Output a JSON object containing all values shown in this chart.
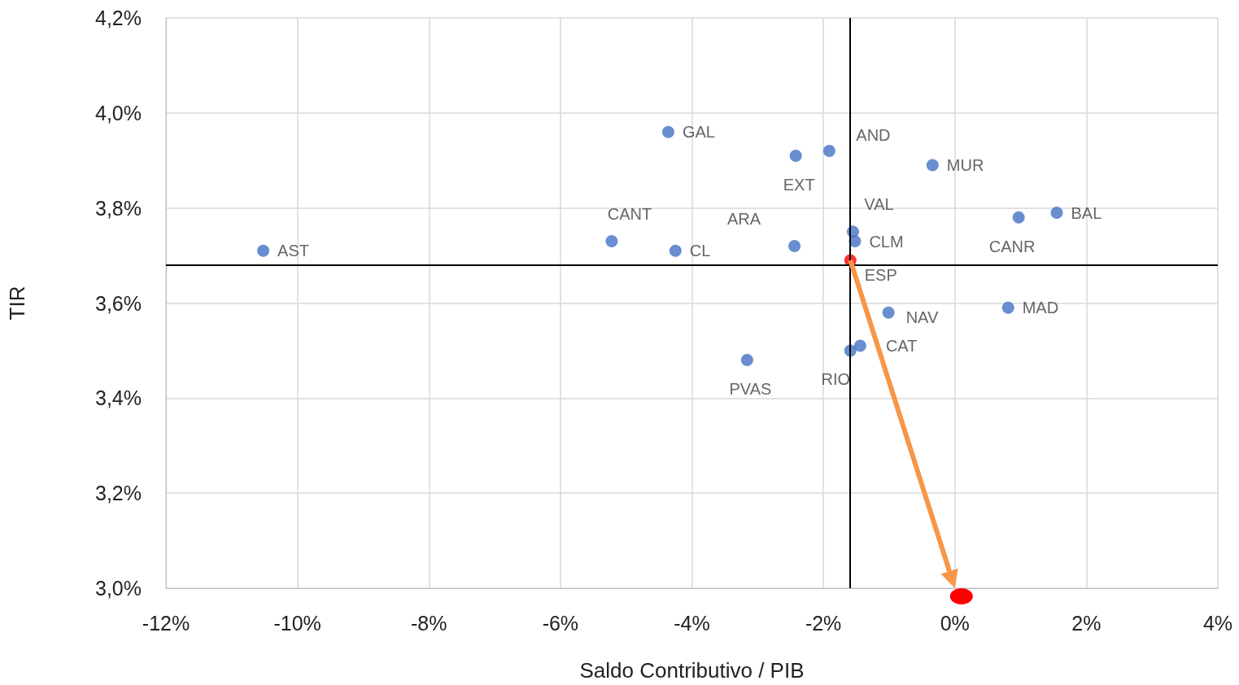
{
  "chart_data": {
    "type": "scatter",
    "xlabel": "Saldo Contributivo / PIB",
    "ylabel": "TIR",
    "x": [
      -4.36,
      -2.42,
      -1.91,
      -0.34,
      -5.22,
      -4.25,
      -2.44,
      -1.55,
      -1.52,
      -1.59,
      0.97,
      1.55,
      -10.52,
      -1.01,
      0.81,
      -1.44,
      -1.59,
      -3.16
    ],
    "values": [
      3.96,
      3.91,
      3.92,
      3.89,
      3.73,
      3.71,
      3.72,
      3.75,
      3.73,
      3.69,
      3.78,
      3.79,
      3.71,
      3.58,
      3.59,
      3.51,
      3.5,
      3.48
    ],
    "value_labels": [
      "GAL",
      "EXT",
      "AND",
      "MUR",
      "CANT",
      "CL",
      "ARA",
      "VAL",
      "CLM",
      "ESP",
      "CANR",
      "BAL",
      "AST",
      "NAV",
      "MAD",
      "CAT",
      "RIO",
      "PVAS"
    ],
    "colors": [
      "#4472c4",
      "#4472c4",
      "#4472c4",
      "#4472c4",
      "#4472c4",
      "#4472c4",
      "#4472c4",
      "#4472c4",
      "#4472c4",
      "#ff0000",
      "#4472c4",
      "#4472c4",
      "#4472c4",
      "#4472c4",
      "#4472c4",
      "#4472c4",
      "#4472c4",
      "#4472c4"
    ],
    "marker": "circle",
    "xlim": [
      -12,
      4
    ],
    "xticks": [
      {
        "value": -12,
        "label": "-12%"
      },
      {
        "value": -10,
        "label": "-10%"
      },
      {
        "value": -8,
        "label": "-8%"
      },
      {
        "value": -6,
        "label": "-6%"
      },
      {
        "value": -4,
        "label": "-4%"
      },
      {
        "value": -2,
        "label": "-2%"
      },
      {
        "value": 0,
        "label": "0%"
      },
      {
        "value": 2,
        "label": "2%"
      },
      {
        "value": 4,
        "label": "4%"
      }
    ],
    "ylim": [
      3.0,
      4.2
    ],
    "yticks": [
      {
        "value": 3.0,
        "label": "3,0%"
      },
      {
        "value": 3.2,
        "label": "3,2%"
      },
      {
        "value": 3.4,
        "label": "3,4%"
      },
      {
        "value": 3.6,
        "label": "3,6%"
      },
      {
        "value": 3.8,
        "label": "3,8%"
      },
      {
        "value": 4.0,
        "label": "4,0%"
      },
      {
        "value": 4.2,
        "label": "4,2%"
      }
    ],
    "ref_lines": [
      {
        "axis": "x",
        "value": -1.6,
        "color": "#000000"
      },
      {
        "axis": "y",
        "value": 3.68,
        "color": "#000000"
      }
    ],
    "grid": true
  }
}
